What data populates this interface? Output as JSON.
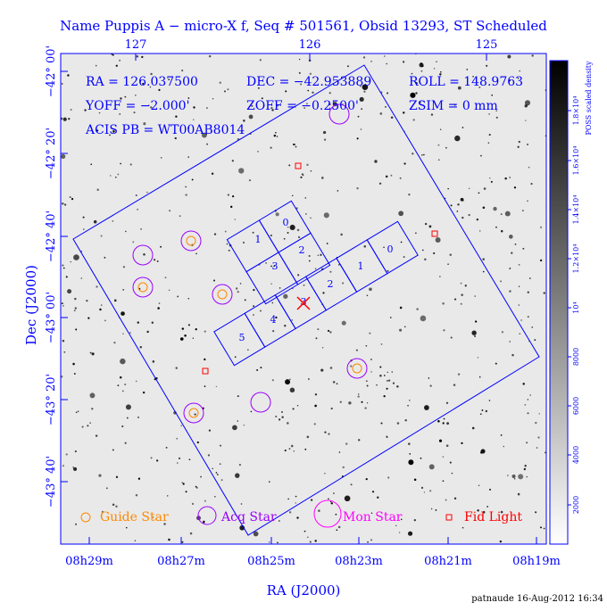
{
  "title": "Name Puppis A − micro-X f, Seq # 501561, Obsid 13293, ST Scheduled",
  "info": {
    "ra": "RA = 126.037500",
    "dec": "DEC = −42.953889",
    "roll": "ROLL = 148.9763",
    "yoff": "YOFF = −2.000'",
    "zoff": "ZOFF = −0.2500'",
    "zsim": "ZSIM = 0 mm",
    "acis": "ACIS PB = WT00AB8014"
  },
  "top_ticks": [
    "127",
    "126",
    "125"
  ],
  "left_ticks": [
    "−42° 00'",
    "−42° 20'",
    "−42° 40'",
    "−43° 00'",
    "−43° 20'",
    "−43° 40'"
  ],
  "bottom_ticks": [
    "08h29m",
    "08h27m",
    "08h25m",
    "08h23m",
    "08h21m",
    "08h19m"
  ],
  "x_label": "RA (J2000)",
  "y_label": "Dec (J2000)",
  "colorbar": {
    "label": "POSS scaled density",
    "ticks": [
      "2000",
      "4000",
      "6000",
      "8000",
      "10⁴",
      "1.2×10⁴",
      "1.4×10⁴",
      "1.6×10⁴",
      "1.8×10⁴"
    ]
  },
  "i_chips": [
    "0",
    "1",
    "2",
    "3"
  ],
  "s_chips": [
    "0",
    "1",
    "2",
    "3",
    "4",
    "5"
  ],
  "legend": [
    "Guide Star",
    "Acq Star",
    "Mon Star",
    "Fid Light"
  ],
  "footer": "patnaude 16-Aug-2012 16:34"
}
